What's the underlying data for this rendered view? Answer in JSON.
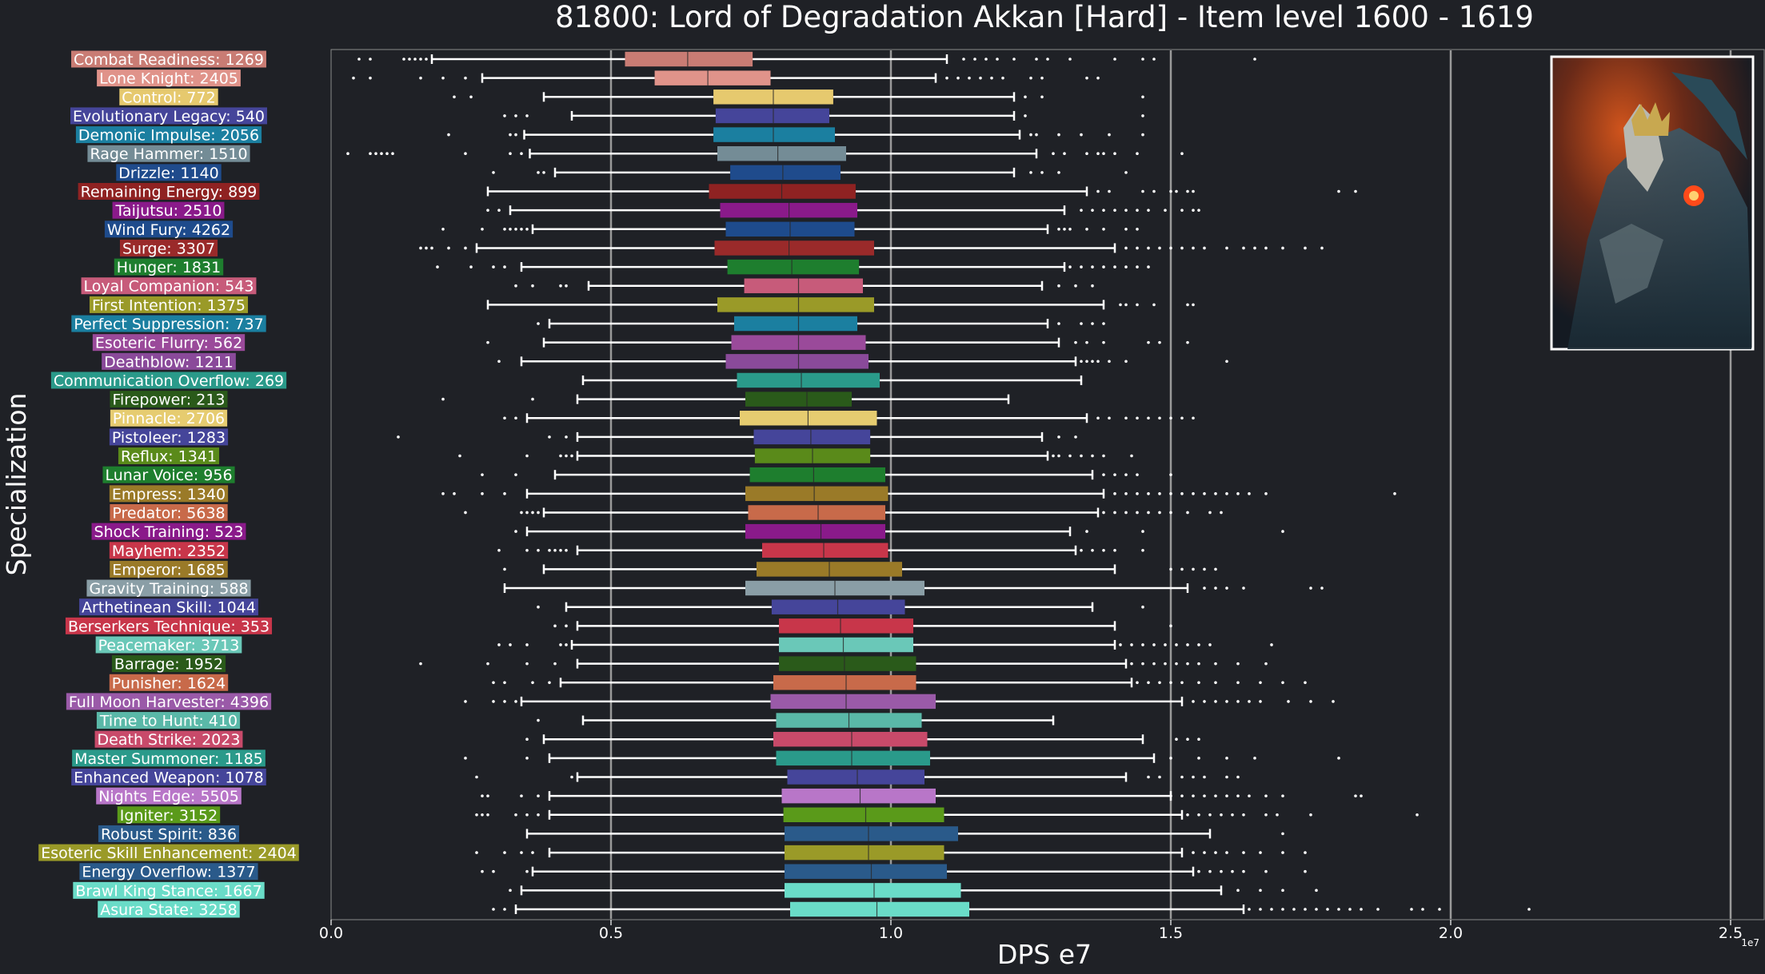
{
  "chart_data": {
    "type": "boxplot",
    "orientation": "horizontal",
    "title": "81800: Lord of Degradation Akkan [Hard] - Item level 1600 - 1619",
    "xlabel": "DPS e7",
    "ylabel": "Specialization",
    "x_offset_label": "1e7",
    "xlim": [
      0,
      2.56
    ],
    "xticks": [
      0.0,
      0.5,
      1.0,
      1.5,
      2.0,
      2.5
    ],
    "xtick_labels": [
      "0.0",
      "0.5",
      "1.0",
      "1.5",
      "2.0",
      "2.5"
    ],
    "vertical_gridlines": [
      0.5,
      1.0,
      1.5,
      2.0,
      2.5
    ],
    "value_units": "1e7 DPS",
    "series": [
      {
        "label": "Combat Readiness: 1269",
        "color": "#c97c74",
        "whisker_low": 0.18,
        "q1": 0.525,
        "median": 0.637,
        "q3": 0.753,
        "whisker_high": 1.1,
        "outliers": [
          0.05,
          0.07,
          0.13,
          0.14,
          0.15,
          0.16,
          0.17,
          1.13,
          1.15,
          1.17,
          1.19,
          1.22,
          1.26,
          1.28,
          1.32,
          1.4,
          1.45,
          1.47,
          1.65
        ]
      },
      {
        "label": "Lone Knight: 2405",
        "color": "#e0938a",
        "whisker_low": 0.27,
        "q1": 0.578,
        "median": 0.673,
        "q3": 0.785,
        "whisker_high": 1.08,
        "outliers": [
          0.04,
          0.07,
          0.16,
          0.2,
          0.24,
          1.1,
          1.12,
          1.14,
          1.16,
          1.18,
          1.2,
          1.25,
          1.27,
          1.35,
          1.37
        ]
      },
      {
        "label": "Control: 772",
        "color": "#e6c96e",
        "whisker_low": 0.38,
        "q1": 0.683,
        "median": 0.79,
        "q3": 0.897,
        "whisker_high": 1.22,
        "outliers": [
          0.22,
          0.25,
          1.24,
          1.27,
          1.45
        ]
      },
      {
        "label": "Evolutionary Legacy: 540",
        "color": "#45459a",
        "whisker_low": 0.43,
        "q1": 0.687,
        "median": 0.79,
        "q3": 0.89,
        "whisker_high": 1.22,
        "outliers": [
          0.31,
          0.33,
          0.35,
          1.24,
          1.45
        ]
      },
      {
        "label": "Demonic Impulse: 2056",
        "color": "#1b7fa0",
        "whisker_low": 0.345,
        "q1": 0.683,
        "median": 0.79,
        "q3": 0.9,
        "whisker_high": 1.23,
        "outliers": [
          0.21,
          0.32,
          0.33,
          1.25,
          1.26,
          1.3,
          1.34,
          1.39,
          1.45
        ]
      },
      {
        "label": "Rage Hammer: 1510",
        "color": "#748c96",
        "whisker_low": 0.355,
        "q1": 0.69,
        "median": 0.798,
        "q3": 0.92,
        "whisker_high": 1.26,
        "outliers": [
          0.03,
          0.07,
          0.08,
          0.09,
          0.1,
          0.11,
          0.24,
          0.32,
          0.34,
          1.29,
          1.31,
          1.35,
          1.37,
          1.38,
          1.4,
          1.44,
          1.52
        ]
      },
      {
        "label": "Drizzle: 1140",
        "color": "#1f4b8c",
        "whisker_low": 0.4,
        "q1": 0.713,
        "median": 0.807,
        "q3": 0.91,
        "whisker_high": 1.22,
        "outliers": [
          0.29,
          0.37,
          0.38,
          1.25,
          1.27,
          1.3,
          1.42
        ]
      },
      {
        "label": "Remaining Energy: 899",
        "color": "#8f2222",
        "whisker_low": 0.28,
        "q1": 0.675,
        "median": 0.805,
        "q3": 0.937,
        "whisker_high": 1.35,
        "outliers": [
          1.37,
          1.39,
          1.45,
          1.47,
          1.5,
          1.51,
          1.53,
          1.54,
          1.8,
          1.83
        ]
      },
      {
        "label": "Taijutsu: 2510",
        "color": "#8a1a8a",
        "whisker_low": 0.32,
        "q1": 0.695,
        "median": 0.818,
        "q3": 0.94,
        "whisker_high": 1.31,
        "outliers": [
          0.28,
          0.3,
          1.34,
          1.36,
          1.38,
          1.4,
          1.42,
          1.44,
          1.46,
          1.49,
          1.52,
          1.54,
          1.55
        ]
      },
      {
        "label": "Wind Fury: 4262",
        "color": "#1e4b8c",
        "whisker_low": 0.36,
        "q1": 0.705,
        "median": 0.82,
        "q3": 0.935,
        "whisker_high": 1.28,
        "outliers": [
          0.2,
          0.27,
          0.31,
          0.32,
          0.33,
          0.34,
          0.35,
          1.3,
          1.31,
          1.32,
          1.35,
          1.38,
          1.42,
          1.44
        ]
      },
      {
        "label": "Surge: 3307",
        "color": "#9a2a2a",
        "whisker_low": 0.26,
        "q1": 0.685,
        "median": 0.818,
        "q3": 0.97,
        "whisker_high": 1.4,
        "outliers": [
          0.16,
          0.17,
          0.18,
          0.21,
          0.24,
          1.42,
          1.44,
          1.46,
          1.48,
          1.5,
          1.52,
          1.54,
          1.56,
          1.6,
          1.63,
          1.65,
          1.67,
          1.7,
          1.74,
          1.77
        ]
      },
      {
        "label": "Hunger: 1831",
        "color": "#1e7e2e",
        "whisker_low": 0.34,
        "q1": 0.708,
        "median": 0.823,
        "q3": 0.943,
        "whisker_high": 1.31,
        "outliers": [
          0.19,
          0.25,
          0.29,
          0.31,
          1.32,
          1.34,
          1.36,
          1.38,
          1.4,
          1.42,
          1.44,
          1.46
        ]
      },
      {
        "label": "Loyal Companion: 543",
        "color": "#c75b7a",
        "whisker_low": 0.46,
        "q1": 0.738,
        "median": 0.835,
        "q3": 0.95,
        "whisker_high": 1.27,
        "outliers": [
          0.33,
          0.36,
          0.41,
          0.42,
          1.3,
          1.33,
          1.36
        ]
      },
      {
        "label": "First Intention: 1375",
        "color": "#9a9a28",
        "whisker_low": 0.28,
        "q1": 0.69,
        "median": 0.835,
        "q3": 0.97,
        "whisker_high": 1.38,
        "outliers": [
          1.41,
          1.42,
          1.44,
          1.47,
          1.53,
          1.54
        ]
      },
      {
        "label": "Perfect Suppression: 737",
        "color": "#1b7fa0",
        "whisker_low": 0.39,
        "q1": 0.72,
        "median": 0.835,
        "q3": 0.94,
        "whisker_high": 1.28,
        "outliers": [
          0.37,
          1.3,
          1.34,
          1.36,
          1.38
        ]
      },
      {
        "label": "Esoteric Flurry: 562",
        "color": "#9a4a9a",
        "whisker_low": 0.38,
        "q1": 0.715,
        "median": 0.835,
        "q3": 0.955,
        "whisker_high": 1.3,
        "outliers": [
          0.28,
          1.33,
          1.35,
          1.38,
          1.46,
          1.48,
          1.53
        ]
      },
      {
        "label": "Deathblow: 1211",
        "color": "#8a4a9a",
        "whisker_low": 0.34,
        "q1": 0.705,
        "median": 0.835,
        "q3": 0.96,
        "whisker_high": 1.33,
        "outliers": [
          0.3,
          1.34,
          1.35,
          1.36,
          1.37,
          1.39,
          1.42,
          1.6
        ]
      },
      {
        "label": "Communication Overflow: 269",
        "color": "#2a9a8a",
        "whisker_low": 0.45,
        "q1": 0.725,
        "median": 0.84,
        "q3": 0.98,
        "whisker_high": 1.34,
        "outliers": []
      },
      {
        "label": "Firepower: 213",
        "color": "#2a5a1a",
        "whisker_low": 0.44,
        "q1": 0.74,
        "median": 0.85,
        "q3": 0.93,
        "whisker_high": 1.21,
        "outliers": [
          0.2,
          0.36
        ]
      },
      {
        "label": "Pinnacle: 2706",
        "color": "#e6cc70",
        "whisker_low": 0.35,
        "q1": 0.73,
        "median": 0.852,
        "q3": 0.975,
        "whisker_high": 1.35,
        "outliers": [
          0.31,
          0.33,
          1.37,
          1.39,
          1.42,
          1.44,
          1.46,
          1.48,
          1.5,
          1.52,
          1.54
        ]
      },
      {
        "label": "Pistoleer: 1283",
        "color": "#45459a",
        "whisker_low": 0.44,
        "q1": 0.755,
        "median": 0.857,
        "q3": 0.963,
        "whisker_high": 1.27,
        "outliers": [
          0.12,
          0.39,
          0.42,
          1.3,
          1.33
        ]
      },
      {
        "label": "Reflux: 1341",
        "color": "#5a8a1a",
        "whisker_low": 0.44,
        "q1": 0.757,
        "median": 0.86,
        "q3": 0.963,
        "whisker_high": 1.28,
        "outliers": [
          0.23,
          0.35,
          0.41,
          0.42,
          0.43,
          1.29,
          1.3,
          1.32,
          1.34,
          1.36,
          1.38,
          1.43
        ]
      },
      {
        "label": "Lunar Voice: 956",
        "color": "#1e7e2e",
        "whisker_low": 0.4,
        "q1": 0.748,
        "median": 0.862,
        "q3": 0.99,
        "whisker_high": 1.36,
        "outliers": [
          0.27,
          0.33,
          1.38,
          1.4,
          1.42,
          1.44,
          1.5
        ]
      },
      {
        "label": "Empress: 1340",
        "color": "#9a7a28",
        "whisker_low": 0.35,
        "q1": 0.74,
        "median": 0.863,
        "q3": 0.995,
        "whisker_high": 1.38,
        "outliers": [
          0.2,
          0.22,
          0.27,
          0.31,
          1.4,
          1.42,
          1.44,
          1.46,
          1.48,
          1.5,
          1.52,
          1.54,
          1.56,
          1.58,
          1.6,
          1.62,
          1.64,
          1.67,
          1.9
        ]
      },
      {
        "label": "Predator: 5638",
        "color": "#c86a4a",
        "whisker_low": 0.38,
        "q1": 0.745,
        "median": 0.87,
        "q3": 0.99,
        "whisker_high": 1.37,
        "outliers": [
          0.24,
          0.34,
          0.35,
          0.36,
          0.37,
          1.38,
          1.4,
          1.42,
          1.44,
          1.46,
          1.48,
          1.5,
          1.53,
          1.57,
          1.59
        ]
      },
      {
        "label": "Shock Training: 523",
        "color": "#8a1a8a",
        "whisker_low": 0.35,
        "q1": 0.74,
        "median": 0.875,
        "q3": 0.99,
        "whisker_high": 1.32,
        "outliers": [
          0.33,
          1.35,
          1.45,
          1.7
        ]
      },
      {
        "label": "Mayhem: 2352",
        "color": "#c8364a",
        "whisker_low": 0.44,
        "q1": 0.77,
        "median": 0.88,
        "q3": 0.995,
        "whisker_high": 1.33,
        "outliers": [
          0.3,
          0.35,
          0.37,
          0.39,
          0.4,
          0.41,
          0.42,
          1.34,
          1.36,
          1.38,
          1.4,
          1.45
        ]
      },
      {
        "label": "Emperor: 1685",
        "color": "#9a7a28",
        "whisker_low": 0.38,
        "q1": 0.76,
        "median": 0.89,
        "q3": 1.02,
        "whisker_high": 1.4,
        "outliers": [
          0.31,
          1.5,
          1.52,
          1.54,
          1.56,
          1.58
        ]
      },
      {
        "label": "Gravity Training: 588",
        "color": "#8a9ea6",
        "whisker_low": 0.31,
        "q1": 0.74,
        "median": 0.9,
        "q3": 1.06,
        "whisker_high": 1.53,
        "outliers": [
          1.56,
          1.58,
          1.6,
          1.63,
          1.75,
          1.77
        ]
      },
      {
        "label": "Arthetinean Skill: 1044",
        "color": "#45459a",
        "whisker_low": 0.42,
        "q1": 0.787,
        "median": 0.905,
        "q3": 1.025,
        "whisker_high": 1.36,
        "outliers": [
          0.37,
          1.45
        ]
      },
      {
        "label": "Berserkers Technique: 353",
        "color": "#c8364a",
        "whisker_low": 0.44,
        "q1": 0.8,
        "median": 0.91,
        "q3": 1.04,
        "whisker_high": 1.4,
        "outliers": [
          0.4,
          0.42,
          1.5
        ]
      },
      {
        "label": "Peacemaker: 3713",
        "color": "#6ac8b8",
        "whisker_low": 0.43,
        "q1": 0.8,
        "median": 0.915,
        "q3": 1.04,
        "whisker_high": 1.4,
        "outliers": [
          0.3,
          0.32,
          0.35,
          0.41,
          0.42,
          1.41,
          1.43,
          1.45,
          1.47,
          1.49,
          1.51,
          1.53,
          1.55,
          1.57,
          1.68
        ]
      },
      {
        "label": "Barrage: 1952",
        "color": "#2a5a1a",
        "whisker_low": 0.44,
        "q1": 0.8,
        "median": 0.917,
        "q3": 1.045,
        "whisker_high": 1.42,
        "outliers": [
          0.16,
          0.28,
          0.35,
          0.4,
          1.43,
          1.45,
          1.47,
          1.49,
          1.51,
          1.53,
          1.55,
          1.58,
          1.62,
          1.67
        ]
      },
      {
        "label": "Punisher: 1624",
        "color": "#c86a4a",
        "whisker_low": 0.41,
        "q1": 0.79,
        "median": 0.92,
        "q3": 1.045,
        "whisker_high": 1.43,
        "outliers": [
          0.29,
          0.31,
          0.36,
          0.39,
          1.44,
          1.46,
          1.48,
          1.5,
          1.52,
          1.55,
          1.58,
          1.62,
          1.66,
          1.7,
          1.74
        ]
      },
      {
        "label": "Full Moon Harvester: 4396",
        "color": "#9a5aa8",
        "whisker_low": 0.34,
        "q1": 0.785,
        "median": 0.92,
        "q3": 1.08,
        "whisker_high": 1.52,
        "outliers": [
          0.24,
          0.29,
          0.31,
          0.33,
          1.54,
          1.56,
          1.58,
          1.6,
          1.62,
          1.64,
          1.66,
          1.71,
          1.75,
          1.79
        ]
      },
      {
        "label": "Time to Hunt: 410",
        "color": "#5ab8a8",
        "whisker_low": 0.45,
        "q1": 0.795,
        "median": 0.925,
        "q3": 1.055,
        "whisker_high": 1.29,
        "outliers": [
          0.37
        ]
      },
      {
        "label": "Death Strike: 2023",
        "color": "#c84a6a",
        "whisker_low": 0.38,
        "q1": 0.79,
        "median": 0.93,
        "q3": 1.065,
        "whisker_high": 1.45,
        "outliers": [
          0.35,
          1.51,
          1.53,
          1.55
        ]
      },
      {
        "label": "Master Summoner: 1185",
        "color": "#2a9a8a",
        "whisker_low": 0.39,
        "q1": 0.795,
        "median": 0.93,
        "q3": 1.07,
        "whisker_high": 1.47,
        "outliers": [
          0.24,
          0.35,
          1.5,
          1.55,
          1.6,
          1.65,
          1.8
        ]
      },
      {
        "label": "Enhanced Weapon: 1078",
        "color": "#45459a",
        "whisker_low": 0.44,
        "q1": 0.815,
        "median": 0.94,
        "q3": 1.06,
        "whisker_high": 1.42,
        "outliers": [
          0.26,
          0.43,
          1.46,
          1.48,
          1.52,
          1.54,
          1.56,
          1.6,
          1.62
        ]
      },
      {
        "label": "Nights Edge: 5505",
        "color": "#b876c8",
        "whisker_low": 0.39,
        "q1": 0.805,
        "median": 0.945,
        "q3": 1.08,
        "whisker_high": 1.5,
        "outliers": [
          0.27,
          0.28,
          0.34,
          0.37,
          1.5,
          1.52,
          1.54,
          1.56,
          1.58,
          1.6,
          1.62,
          1.64,
          1.67,
          1.7,
          1.83,
          1.84
        ]
      },
      {
        "label": "Igniter: 3152",
        "color": "#5a9a1a",
        "whisker_low": 0.39,
        "q1": 0.808,
        "median": 0.955,
        "q3": 1.095,
        "whisker_high": 1.52,
        "outliers": [
          0.26,
          0.27,
          0.28,
          0.33,
          0.35,
          0.37,
          1.53,
          1.55,
          1.57,
          1.59,
          1.61,
          1.63,
          1.67,
          1.69,
          1.75,
          1.94
        ]
      },
      {
        "label": "Robust Spirit: 836",
        "color": "#2a5a8a",
        "whisker_low": 0.35,
        "q1": 0.81,
        "median": 0.96,
        "q3": 1.12,
        "whisker_high": 1.57,
        "outliers": [
          1.7
        ]
      },
      {
        "label": "Esoteric Skill Enhancement: 2404",
        "color": "#9a9a28",
        "whisker_low": 0.39,
        "q1": 0.81,
        "median": 0.96,
        "q3": 1.095,
        "whisker_high": 1.52,
        "outliers": [
          0.26,
          0.31,
          0.34,
          0.36,
          1.54,
          1.56,
          1.58,
          1.6,
          1.63,
          1.66,
          1.7,
          1.74
        ]
      },
      {
        "label": "Energy Overflow: 1377",
        "color": "#2a5a8a",
        "whisker_low": 0.36,
        "q1": 0.81,
        "median": 0.965,
        "q3": 1.1,
        "whisker_high": 1.54,
        "outliers": [
          0.27,
          0.29,
          0.35,
          1.55,
          1.57,
          1.59,
          1.61,
          1.63,
          1.67,
          1.74
        ]
      },
      {
        "label": "Brawl King Stance: 1667",
        "color": "#6adcc8",
        "whisker_low": 0.34,
        "q1": 0.81,
        "median": 0.97,
        "q3": 1.125,
        "whisker_high": 1.59,
        "outliers": [
          0.32,
          1.62,
          1.66,
          1.7,
          1.76
        ]
      },
      {
        "label": "Asura State: 3258",
        "color": "#6adcc8",
        "whisker_low": 0.33,
        "q1": 0.82,
        "median": 0.975,
        "q3": 1.14,
        "whisker_high": 1.63,
        "outliers": [
          0.29,
          0.31,
          1.64,
          1.66,
          1.68,
          1.7,
          1.72,
          1.74,
          1.76,
          1.78,
          1.8,
          1.82,
          1.84,
          1.87,
          1.93,
          1.95,
          1.98,
          2.14
        ]
      }
    ]
  }
}
